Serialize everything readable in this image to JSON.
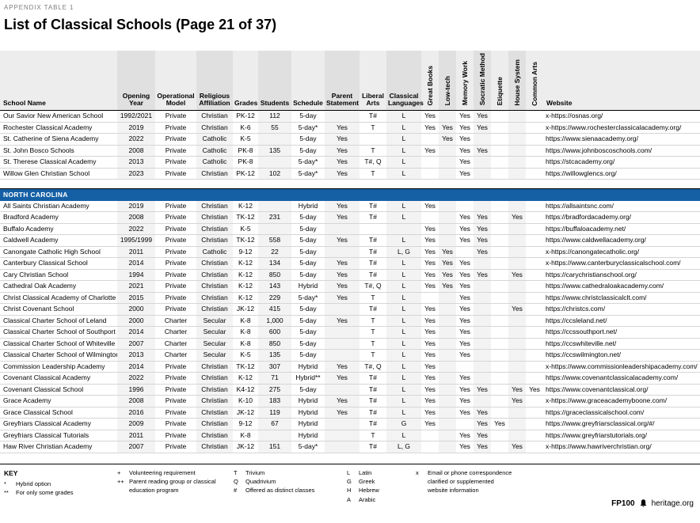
{
  "page": {
    "eyebrow": "APPENDIX TABLE 1",
    "title": "List of Classical Schools (Page 21 of 37)"
  },
  "colors": {
    "section_bar": "#1560a5"
  },
  "table": {
    "columns": [
      "School Name",
      "Opening Year",
      "Operational Model",
      "Religious Affiliation",
      "Grades",
      "Students",
      "Schedule",
      "Parent Statement",
      "Liberal Arts",
      "Classical Languages",
      "Great Books",
      "Low-tech",
      "Memory Work",
      "Socratic Method",
      "Etiquette",
      "House System",
      "Common Arts",
      "Website"
    ],
    "sections": [
      {
        "label": "",
        "rows": [
          {
            "name": "Our Savior New American School",
            "year": "1992/2021",
            "model": "Private",
            "religion": "Christian",
            "grades": "PK-12",
            "students": "112",
            "schedule": "5-day",
            "parent": "",
            "liberal": "T#",
            "languages": "L",
            "flags": [
              "Yes",
              "",
              "Yes",
              "Yes",
              "",
              "",
              ""
            ],
            "website": "x-https://osnas.org/"
          },
          {
            "name": "Rochester Classical Academy",
            "year": "2019",
            "model": "Private",
            "religion": "Christian",
            "grades": "K-6",
            "students": "55",
            "schedule": "5-day*",
            "parent": "Yes",
            "liberal": "T",
            "languages": "L",
            "flags": [
              "Yes",
              "Yes",
              "Yes",
              "Yes",
              "",
              "",
              ""
            ],
            "website": "x-https://www.rochesterclassicalacademy.org/"
          },
          {
            "name": "St. Catherine of Siena Academy",
            "year": "2022",
            "model": "Private",
            "religion": "Catholic",
            "grades": "K-5",
            "students": "",
            "schedule": "5-day",
            "parent": "Yes",
            "liberal": "",
            "languages": "L",
            "flags": [
              "",
              "Yes",
              "Yes",
              "",
              "",
              "",
              ""
            ],
            "website": "https://www.sienaacademy.org/"
          },
          {
            "name": "St. John Bosco Schools",
            "year": "2008",
            "model": "Private",
            "religion": "Catholic",
            "grades": "PK-8",
            "students": "135",
            "schedule": "5-day",
            "parent": "Yes",
            "liberal": "T",
            "languages": "L",
            "flags": [
              "Yes",
              "",
              "Yes",
              "Yes",
              "",
              "",
              ""
            ],
            "website": "https://www.johnboscoschools.com/"
          },
          {
            "name": "St. Therese Classical Academy",
            "year": "2013",
            "model": "Private",
            "religion": "Catholic",
            "grades": "PK-8",
            "students": "",
            "schedule": "5-day*",
            "parent": "Yes",
            "liberal": "T#, Q",
            "languages": "L",
            "flags": [
              "",
              "",
              "Yes",
              "",
              "",
              "",
              ""
            ],
            "website": "https://stcacademy.org/"
          },
          {
            "name": "Willow Glen Christian School",
            "year": "2023",
            "model": "Private",
            "religion": "Christian",
            "grades": "PK-12",
            "students": "102",
            "schedule": "5-day*",
            "parent": "Yes",
            "liberal": "T",
            "languages": "L",
            "flags": [
              "",
              "",
              "Yes",
              "",
              "",
              "",
              ""
            ],
            "website": "https://willowglencs.org/"
          }
        ]
      },
      {
        "label": "NORTH CAROLINA",
        "rows": [
          {
            "name": "All Saints Christian Academy",
            "year": "2019",
            "model": "Private",
            "religion": "Christian",
            "grades": "K-12",
            "students": "",
            "schedule": "Hybrid",
            "parent": "Yes",
            "liberal": "T#",
            "languages": "L",
            "flags": [
              "Yes",
              "",
              "",
              "",
              "",
              "",
              ""
            ],
            "website": "https://allsaintsnc.com/"
          },
          {
            "name": "Bradford Academy",
            "year": "2008",
            "model": "Private",
            "religion": "Christian",
            "grades": "TK-12",
            "students": "231",
            "schedule": "5-day",
            "parent": "Yes",
            "liberal": "T#",
            "languages": "L",
            "flags": [
              "",
              "",
              "Yes",
              "Yes",
              "",
              "Yes",
              ""
            ],
            "website": "https://bradfordacademy.org/"
          },
          {
            "name": "Buffalo Academy",
            "year": "2022",
            "model": "Private",
            "religion": "Christian",
            "grades": "K-5",
            "students": "",
            "schedule": "5-day",
            "parent": "",
            "liberal": "",
            "languages": "",
            "flags": [
              "Yes",
              "",
              "Yes",
              "Yes",
              "",
              "",
              ""
            ],
            "website": "https://buffaloacademy.net/"
          },
          {
            "name": "Caldwell Academy",
            "year": "1995/1999",
            "model": "Private",
            "religion": "Christian",
            "grades": "TK-12",
            "students": "558",
            "schedule": "5-day",
            "parent": "Yes",
            "liberal": "T#",
            "languages": "L",
            "flags": [
              "Yes",
              "",
              "Yes",
              "Yes",
              "",
              "",
              ""
            ],
            "website": "https://www.caldwellacademy.org/"
          },
          {
            "name": "Canongate Catholic High School",
            "year": "2011",
            "model": "Private",
            "religion": "Catholic",
            "grades": "9-12",
            "students": "22",
            "schedule": "5-day",
            "parent": "",
            "liberal": "T#",
            "languages": "L, G",
            "flags": [
              "Yes",
              "Yes",
              "",
              "Yes",
              "",
              "",
              ""
            ],
            "website": "x-https://canongatecatholic.org/"
          },
          {
            "name": "Canterbury Classical School",
            "year": "2014",
            "model": "Private",
            "religion": "Christian",
            "grades": "K-12",
            "students": "134",
            "schedule": "5-day",
            "parent": "Yes",
            "liberal": "T#",
            "languages": "L",
            "flags": [
              "Yes",
              "Yes",
              "Yes",
              "",
              "",
              "",
              ""
            ],
            "website": "x-https://www.canterburyclassicalschool.com/"
          },
          {
            "name": "Cary Christian School",
            "year": "1994",
            "model": "Private",
            "religion": "Christian",
            "grades": "K-12",
            "students": "850",
            "schedule": "5-day",
            "parent": "Yes",
            "liberal": "T#",
            "languages": "L",
            "flags": [
              "Yes",
              "Yes",
              "Yes",
              "Yes",
              "",
              "Yes",
              ""
            ],
            "website": "https://carychristianschool.org/"
          },
          {
            "name": "Cathedral Oak Academy",
            "year": "2021",
            "model": "Private",
            "religion": "Christian",
            "grades": "K-12",
            "students": "143",
            "schedule": "Hybrid",
            "parent": "Yes",
            "liberal": "T#, Q",
            "languages": "L",
            "flags": [
              "Yes",
              "Yes",
              "Yes",
              "",
              "",
              "",
              ""
            ],
            "website": "https://www.cathedraloakacademy.com/"
          },
          {
            "name": "Christ Classical Academy of Charlotte",
            "year": "2015",
            "model": "Private",
            "religion": "Christian",
            "grades": "K-12",
            "students": "229",
            "schedule": "5-day*",
            "parent": "Yes",
            "liberal": "T",
            "languages": "L",
            "flags": [
              "",
              "",
              "Yes",
              "",
              "",
              "",
              ""
            ],
            "website": "https://www.christclassicalclt.com/"
          },
          {
            "name": "Christ Covenant School",
            "year": "2000",
            "model": "Private",
            "religion": "Christian",
            "grades": "JK-12",
            "students": "415",
            "schedule": "5-day",
            "parent": "",
            "liberal": "T#",
            "languages": "L",
            "flags": [
              "Yes",
              "",
              "Yes",
              "",
              "",
              "Yes",
              ""
            ],
            "website": "https://christcs.com/"
          },
          {
            "name": "Classical Charter School of Leland",
            "year": "2000",
            "model": "Charter",
            "religion": "Secular",
            "grades": "K-8",
            "students": "1,000",
            "schedule": "5-day",
            "parent": "Yes",
            "liberal": "T",
            "languages": "L",
            "flags": [
              "Yes",
              "",
              "Yes",
              "",
              "",
              "",
              ""
            ],
            "website": "https://ccsleland.net/"
          },
          {
            "name": "Classical Charter School of Southport",
            "year": "2014",
            "model": "Charter",
            "religion": "Secular",
            "grades": "K-8",
            "students": "600",
            "schedule": "5-day",
            "parent": "",
            "liberal": "T",
            "languages": "L",
            "flags": [
              "Yes",
              "",
              "Yes",
              "",
              "",
              "",
              ""
            ],
            "website": "https://ccssouthport.net/"
          },
          {
            "name": "Classical Charter School of Whiteville",
            "year": "2007",
            "model": "Charter",
            "religion": "Secular",
            "grades": "K-8",
            "students": "850",
            "schedule": "5-day",
            "parent": "",
            "liberal": "T",
            "languages": "L",
            "flags": [
              "Yes",
              "",
              "Yes",
              "",
              "",
              "",
              ""
            ],
            "website": "https://ccswhiteville.net/"
          },
          {
            "name": "Classical Charter School of Wilmington",
            "year": "2013",
            "model": "Charter",
            "religion": "Secular",
            "grades": "K-5",
            "students": "135",
            "schedule": "5-day",
            "parent": "",
            "liberal": "T",
            "languages": "L",
            "flags": [
              "Yes",
              "",
              "Yes",
              "",
              "",
              "",
              ""
            ],
            "website": "https://ccswilmington.net/"
          },
          {
            "name": "Commission Leadership Academy",
            "year": "2014",
            "model": "Private",
            "religion": "Christian",
            "grades": "TK-12",
            "students": "307",
            "schedule": "Hybrid",
            "parent": "Yes",
            "liberal": "T#, Q",
            "languages": "L",
            "flags": [
              "Yes",
              "",
              "",
              "",
              "",
              "",
              ""
            ],
            "website": "x-https://www.commissionleadershipacademy.com/"
          },
          {
            "name": "Covenant Classical Academy",
            "year": "2022",
            "model": "Private",
            "religion": "Christian",
            "grades": "K-12",
            "students": "71",
            "schedule": "Hybrid**",
            "parent": "Yes",
            "liberal": "T#",
            "languages": "L",
            "flags": [
              "Yes",
              "",
              "Yes",
              "",
              "",
              "",
              ""
            ],
            "website": "https://www.covenantclassicalacademy.com/"
          },
          {
            "name": "Covenant Classical School",
            "year": "1996",
            "model": "Private",
            "religion": "Christian",
            "grades": "K4-12",
            "students": "275",
            "schedule": "5-day",
            "parent": "",
            "liberal": "T#",
            "languages": "L",
            "flags": [
              "Yes",
              "",
              "Yes",
              "Yes",
              "",
              "Yes",
              "Yes"
            ],
            "website": "https://www.covenantclassical.org/"
          },
          {
            "name": "Grace Academy",
            "year": "2008",
            "model": "Private",
            "religion": "Christian",
            "grades": "K-10",
            "students": "183",
            "schedule": "Hybrid",
            "parent": "Yes",
            "liberal": "T#",
            "languages": "L",
            "flags": [
              "Yes",
              "",
              "Yes",
              "",
              "",
              "Yes",
              ""
            ],
            "website": "x-https://www.graceacademyboone.com/"
          },
          {
            "name": "Grace Classical School",
            "year": "2016",
            "model": "Private",
            "religion": "Christian",
            "grades": "JK-12",
            "students": "119",
            "schedule": "Hybrid",
            "parent": "Yes",
            "liberal": "T#",
            "languages": "L",
            "flags": [
              "Yes",
              "",
              "Yes",
              "Yes",
              "",
              "",
              ""
            ],
            "website": "https://graceclassicalschool.com/"
          },
          {
            "name": "Greyfriars Classical Academy",
            "year": "2009",
            "model": "Private",
            "religion": "Christian",
            "grades": "9-12",
            "students": "67",
            "schedule": "Hybrid",
            "parent": "",
            "liberal": "T#",
            "languages": "G",
            "flags": [
              "Yes",
              "",
              "",
              "Yes",
              "Yes",
              "",
              ""
            ],
            "website": "https://www.greyfriarsclassical.org/#/"
          },
          {
            "name": "Greyfriars Classical Tutorials",
            "year": "2011",
            "model": "Private",
            "religion": "Christian",
            "grades": "K-8",
            "students": "",
            "schedule": "Hybrid",
            "parent": "",
            "liberal": "T",
            "languages": "L",
            "flags": [
              "",
              "",
              "Yes",
              "Yes",
              "",
              "",
              ""
            ],
            "website": "https://www.greyfriarstutorials.org/"
          },
          {
            "name": "Haw River Christian Academy",
            "year": "2007",
            "model": "Private",
            "religion": "Christian",
            "grades": "JK-12",
            "students": "151",
            "schedule": "5-day*",
            "parent": "",
            "liberal": "T#",
            "languages": "L, G",
            "flags": [
              "",
              "",
              "Yes",
              "Yes",
              "",
              "Yes",
              ""
            ],
            "website": "x-https://www.hawriverchristian.org/"
          }
        ]
      }
    ]
  },
  "key": {
    "title": "KEY",
    "groups": [
      {
        "items": [
          {
            "sym": "*",
            "text": "Hybrid option"
          },
          {
            "sym": "**",
            "text": "For only some grades"
          }
        ]
      },
      {
        "items": [
          {
            "sym": "+",
            "text": "Volunteering requirement"
          },
          {
            "sym": "++",
            "text": "Parent reading group or classical education program"
          }
        ]
      },
      {
        "items": [
          {
            "sym": "T",
            "text": "Trivium"
          },
          {
            "sym": "Q",
            "text": "Quadrivium"
          },
          {
            "sym": "#",
            "text": "Offered as distinct classes"
          }
        ]
      },
      {
        "items": [
          {
            "sym": "L",
            "text": "Latin"
          },
          {
            "sym": "G",
            "text": "Greek"
          },
          {
            "sym": "H",
            "text": "Hebrew"
          },
          {
            "sym": "A",
            "text": "Arabic"
          }
        ]
      },
      {
        "items": [
          {
            "sym": "x",
            "text": "Email or phone correspondence clarified or supplemented website information"
          }
        ]
      }
    ]
  },
  "footer": {
    "code": "FP100",
    "site": "heritage.org"
  }
}
